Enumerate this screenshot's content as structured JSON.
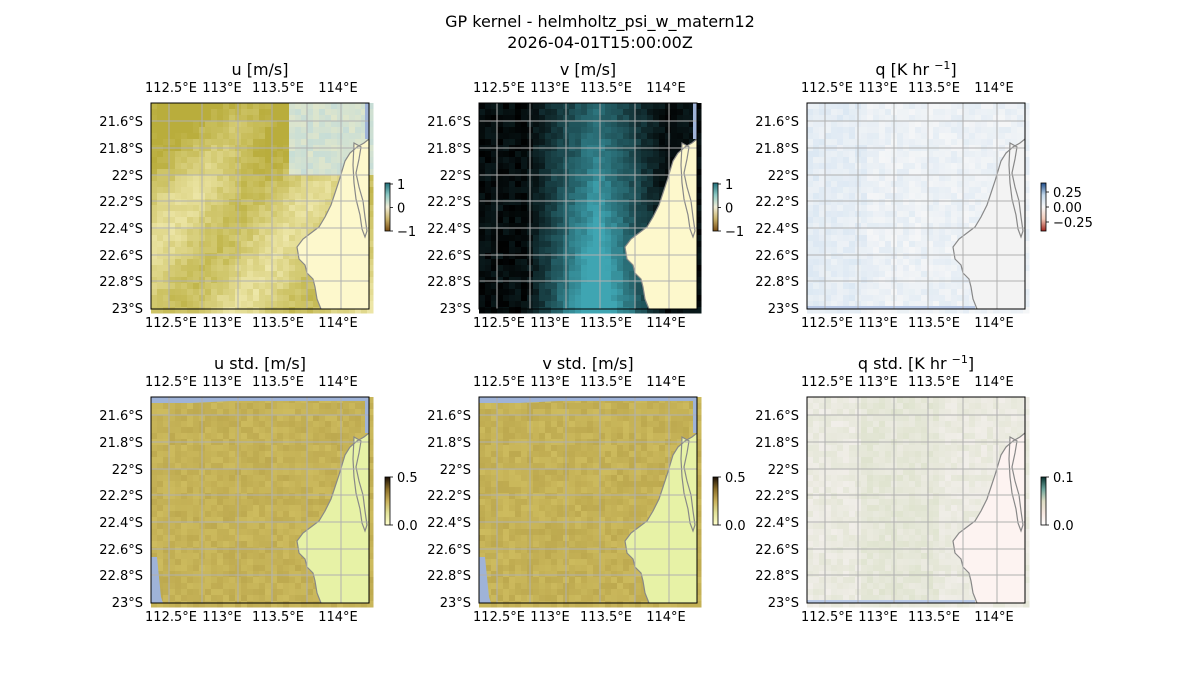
{
  "figure": {
    "title_line1": "GP kernel - helmholtz_psi_w_matern12",
    "title_line2": "2026-04-01T15:00:00Z"
  },
  "chart_data": [
    {
      "type": "heatmap",
      "title": "u [m/s]",
      "title_unit_sup": "",
      "title_unit_suffix": "",
      "colormap": "brown-to-teal (diverging)",
      "colorbar": {
        "ticks": [
          "1",
          "0",
          "−1"
        ],
        "range": [
          -1,
          1
        ]
      },
      "lon_ticks": [
        "112.5°E",
        "113°E",
        "113.5°E",
        "114°E"
      ],
      "lat_ticks": [
        "21.6°S",
        "21.8°S",
        "22°S",
        "22.2°S",
        "22.4°S",
        "22.6°S",
        "22.8°S",
        "23°S"
      ],
      "pattern": "u",
      "colors": {
        "ocean": "#bccf80",
        "land": "#fdf8cc",
        "accent": "#d8cc7a"
      }
    },
    {
      "type": "heatmap",
      "title": "v [m/s]",
      "colormap": "brown-to-teal (diverging)",
      "colorbar": {
        "ticks": [
          "1",
          "0",
          "−1"
        ],
        "range": [
          -1,
          1
        ]
      },
      "lon_ticks": [
        "112.5°E",
        "113°E",
        "113.5°E",
        "114°E"
      ],
      "lat_ticks": [
        "21.6°S",
        "21.8°S",
        "22°S",
        "22.2°S",
        "22.4°S",
        "22.6°S",
        "22.8°S",
        "23°S"
      ],
      "pattern": "v",
      "colors": {
        "ocean": "#b7d6cc",
        "land": "#fdf8cc",
        "accent": "#41a7b5"
      }
    },
    {
      "type": "heatmap",
      "title": "q [K hr ",
      "title_unit_sup": "−1",
      "title_unit_suffix": "]",
      "colormap": "red-to-blue (diverging)",
      "colorbar": {
        "ticks": [
          "0.25",
          "0.00",
          "−0.25"
        ],
        "range": [
          -0.35,
          0.35
        ]
      },
      "lon_ticks": [
        "112.5°E",
        "113°E",
        "113.5°E",
        "114°E"
      ],
      "lat_ticks": [
        "21.6°S",
        "21.8°S",
        "22°S",
        "22.2°S",
        "22.4°S",
        "22.6°S",
        "22.8°S",
        "23°S"
      ],
      "pattern": "q",
      "colors": {
        "ocean": "#ebf1f7",
        "land": "#f3f3f3",
        "accent": "#dde8f3"
      }
    },
    {
      "type": "heatmap",
      "title": "u std. [m/s]",
      "colormap": "sequential (dark-to-light)",
      "colorbar": {
        "ticks": [
          "0.5",
          "0.0"
        ],
        "range": [
          0,
          0.5
        ]
      },
      "lon_ticks": [
        "112.5°E",
        "113°E",
        "113.5°E",
        "114°E"
      ],
      "lat_ticks": [
        "21.6°S",
        "21.8°S",
        "22°S",
        "22.2°S",
        "22.4°S",
        "22.6°S",
        "22.8°S",
        "23°S"
      ],
      "pattern": "std",
      "colors": {
        "ocean": "#c9b95b",
        "land": "#e7f2a6",
        "accent": "#bfae52"
      }
    },
    {
      "type": "heatmap",
      "title": "v std. [m/s]",
      "colormap": "sequential (dark-to-light)",
      "colorbar": {
        "ticks": [
          "0.5",
          "0.0"
        ],
        "range": [
          0,
          0.5
        ]
      },
      "lon_ticks": [
        "112.5°E",
        "113°E",
        "113.5°E",
        "114°E"
      ],
      "lat_ticks": [
        "21.6°S",
        "21.8°S",
        "22°S",
        "22.2°S",
        "22.4°S",
        "22.6°S",
        "22.8°S",
        "23°S"
      ],
      "pattern": "std",
      "colors": {
        "ocean": "#c9b95b",
        "land": "#e7f2a6",
        "accent": "#bfae52"
      }
    },
    {
      "type": "heatmap",
      "title": "q std. [K hr ",
      "title_unit_sup": "−1",
      "title_unit_suffix": "]",
      "colormap": "sequential (dark-to-light)",
      "colorbar": {
        "ticks": [
          "0.1",
          "0.0"
        ],
        "range": [
          0,
          0.1
        ]
      },
      "lon_ticks": [
        "112.5°E",
        "113°E",
        "113.5°E",
        "114°E"
      ],
      "lat_ticks": [
        "21.6°S",
        "21.8°S",
        "22°S",
        "22.2°S",
        "22.4°S",
        "22.6°S",
        "22.8°S",
        "23°S"
      ],
      "pattern": "qstd",
      "colors": {
        "ocean": "#ece9df",
        "land": "#fdf3f1",
        "accent": "#dfe0cc"
      }
    }
  ]
}
